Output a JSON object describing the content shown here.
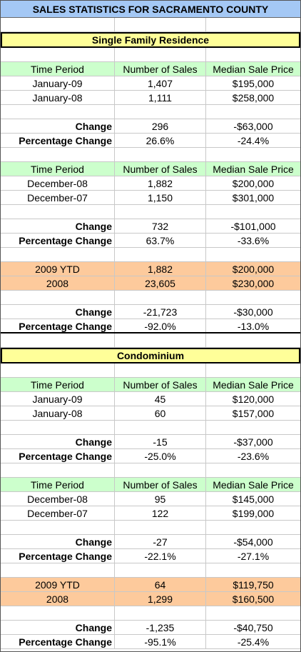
{
  "title": "SALES STATISTICS FOR SACRAMENTO COUNTY",
  "sections": [
    {
      "heading": "Single Family Residence",
      "blocks": [
        {
          "header": [
            "Time Period",
            "Number of Sales",
            "Median Sale Price"
          ],
          "rows": [
            [
              "January-09",
              "1,407",
              "$195,000"
            ],
            [
              "January-08",
              "1,111",
              "$258,000"
            ]
          ],
          "change": [
            "Change",
            "296",
            "-$63,000"
          ],
          "pct": [
            "Percentage Change",
            "26.6%",
            "-24.4%"
          ]
        },
        {
          "header": [
            "Time Period",
            "Number of Sales",
            "Median Sale Price"
          ],
          "rows": [
            [
              "December-08",
              "1,882",
              "$200,000"
            ],
            [
              "December-07",
              "1,150",
              "$301,000"
            ]
          ],
          "change": [
            "Change",
            "732",
            "-$101,000"
          ],
          "pct": [
            "Percentage Change",
            "63.7%",
            "-33.6%"
          ]
        },
        {
          "rows": [
            [
              "2009 YTD",
              "1,882",
              "$200,000"
            ],
            [
              "2008",
              "23,605",
              "$230,000"
            ]
          ],
          "change": [
            "Change",
            "-21,723",
            "-$30,000"
          ],
          "pct": [
            "Percentage Change",
            "-92.0%",
            "-13.0%"
          ]
        }
      ]
    },
    {
      "heading": "Condominium",
      "blocks": [
        {
          "header": [
            "Time Period",
            "Number of Sales",
            "Median Sale Price"
          ],
          "rows": [
            [
              "January-09",
              "45",
              "$120,000"
            ],
            [
              "January-08",
              "60",
              "$157,000"
            ]
          ],
          "change": [
            "Change",
            "-15",
            "-$37,000"
          ],
          "pct": [
            "Percentage Change",
            "-25.0%",
            "-23.6%"
          ]
        },
        {
          "header": [
            "Time Period",
            "Number of Sales",
            "Median Sale Price"
          ],
          "rows": [
            [
              "December-08",
              "95",
              "$145,000"
            ],
            [
              "December-07",
              "122",
              "$199,000"
            ]
          ],
          "change": [
            "Change",
            "-27",
            "-$54,000"
          ],
          "pct": [
            "Percentage Change",
            "-22.1%",
            "-27.1%"
          ]
        },
        {
          "rows": [
            [
              "2009 YTD",
              "64",
              "$119,750"
            ],
            [
              "2008",
              "1,299",
              "$160,500"
            ]
          ],
          "change": [
            "Change",
            "-1,235",
            "-$40,750"
          ],
          "pct": [
            "Percentage Change",
            "-95.1%",
            "-25.4%"
          ]
        }
      ]
    }
  ]
}
